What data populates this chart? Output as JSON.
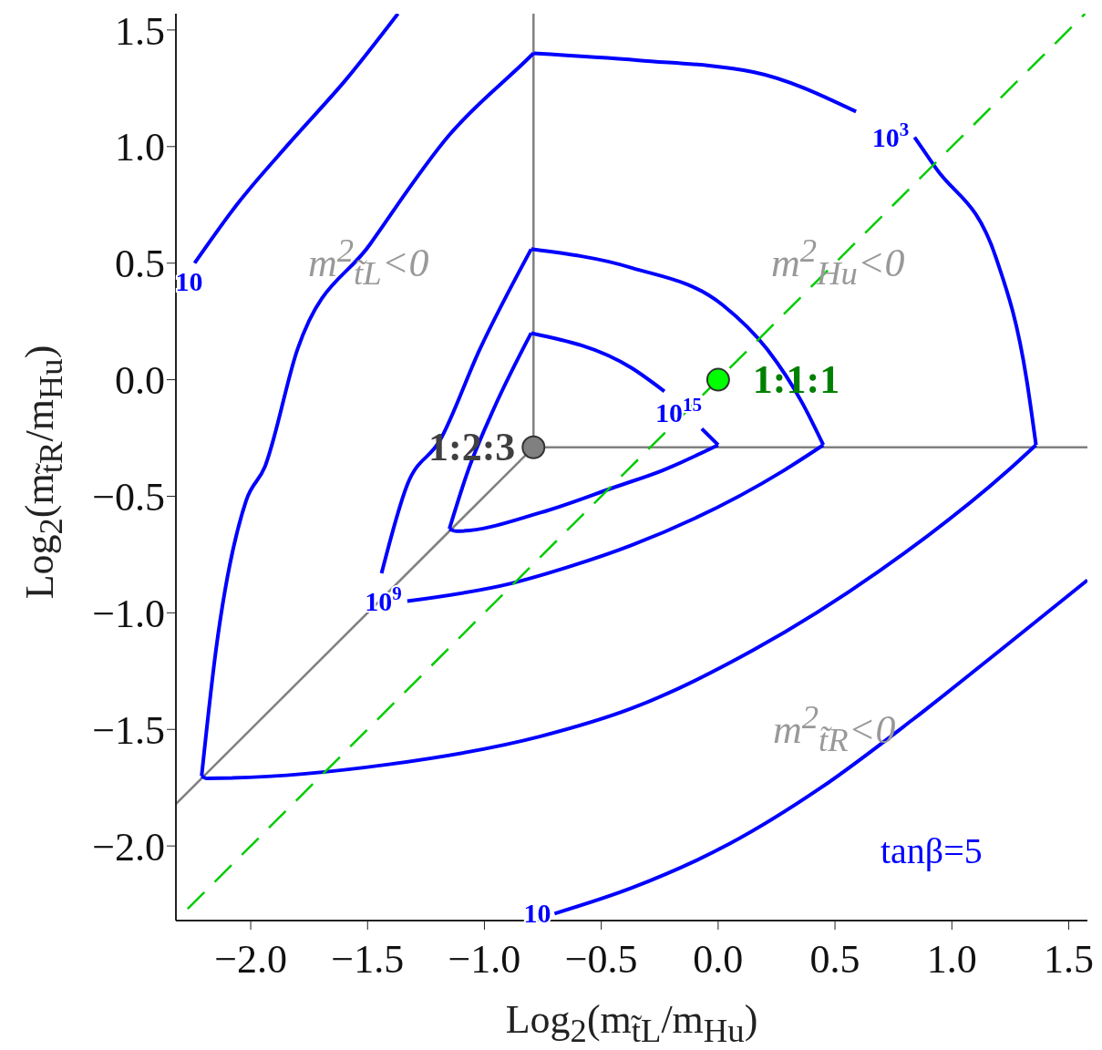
{
  "chart_data": {
    "type": "line",
    "xlabel": "Log$_{2}$(m$_{t̃L}$/m$_{Hu}$)",
    "ylabel": "Log$_{2}$(m$_{t̃R}$/m$_{Hu}$)",
    "xlim": [
      -2.32,
      1.58
    ],
    "ylim": [
      -2.32,
      1.57
    ],
    "xticks": [
      {
        "value": -2,
        "label": "−2.0"
      },
      {
        "value": -1.5,
        "label": "−1.5"
      },
      {
        "value": -1,
        "label": "−1.0"
      },
      {
        "value": -0.5,
        "label": "−0.5"
      },
      {
        "value": 0,
        "label": "0.0"
      },
      {
        "value": 0.5,
        "label": "0.5"
      },
      {
        "value": 1,
        "label": "1.0"
      },
      {
        "value": 1.5,
        "label": "1.5"
      }
    ],
    "yticks": [
      {
        "value": -2,
        "label": "−2.0"
      },
      {
        "value": -1.5,
        "label": "−1.5"
      },
      {
        "value": -1,
        "label": "−1.0"
      },
      {
        "value": -0.5,
        "label": "−0.5"
      },
      {
        "value": 0,
        "label": "0.0"
      },
      {
        "value": 0.5,
        "label": "0.5"
      },
      {
        "value": 1,
        "label": "1.0"
      },
      {
        "value": 1.5,
        "label": "1.5"
      }
    ],
    "grid": false,
    "marker": "none",
    "series": [
      {
        "color": "#808080",
        "x": [
          -0.79,
          -0.79
        ],
        "values": [
          -0.29,
          1.57
        ]
      },
      {
        "color": "#808080",
        "x": [
          -0.79,
          1.58
        ],
        "values": [
          -0.29,
          -0.29
        ]
      },
      {
        "color": "#808080",
        "x": [
          -2.32,
          -0.79
        ],
        "values": [
          -1.82,
          -0.29
        ]
      },
      {
        "color": "#0000ff",
        "x": [
          -2.24,
          -2.06,
          -1.83,
          -1.59,
          -1.37
        ],
        "values": [
          0.5,
          0.75,
          1.02,
          1.29,
          1.57
        ]
      },
      {
        "color": "#0000ff",
        "x": [
          -0.7,
          -0.37,
          0.05,
          0.44,
          0.83,
          1.22,
          1.58
        ],
        "values": [
          -2.29,
          -2.18,
          -1.99,
          -1.75,
          -1.46,
          -1.15,
          -0.86
        ]
      },
      {
        "color": "#0000ff",
        "x": [
          -2.21,
          -2.15,
          -2.02,
          -1.94,
          -1.8,
          -1.49,
          -1.15,
          -0.8,
          -0.79
        ],
        "values": [
          -1.7,
          -1.17,
          -0.52,
          -0.375,
          0.13,
          0.58,
          1.05,
          1.39,
          1.4
        ]
      },
      {
        "color": "#0000ff",
        "x": [
          -0.79,
          -0.34,
          0.15,
          0.59,
          0.71,
          0.84,
          0.93,
          1.19,
          1.32,
          1.36
        ],
        "values": [
          1.4,
          1.37,
          1.32,
          1.15,
          null,
          1.04,
          0.91,
          0.52,
          0.0,
          -0.28
        ]
      },
      {
        "color": "#0000ff",
        "x": [
          -2.21,
          -2.19,
          -1.41,
          -0.76,
          -0.37,
          0.15,
          0.69,
          1.24,
          1.36
        ],
        "values": [
          -1.7,
          -1.71,
          -1.65,
          -1.53,
          -1.41,
          -1.16,
          -0.82,
          -0.39,
          -0.28
        ]
      },
      {
        "color": "#0000ff",
        "x": [
          -1.44,
          -1.33,
          -1.19,
          -1.02,
          -0.8
        ],
        "values": [
          -0.83,
          -0.45,
          -0.26,
          0.13,
          0.56
        ]
      },
      {
        "color": "#0000ff",
        "x": [
          -0.8,
          -0.37,
          0.02,
          0.21,
          0.36,
          0.45
        ],
        "values": [
          0.56,
          0.48,
          0.32,
          0.13,
          -0.1,
          -0.28
        ]
      },
      {
        "color": "#0000ff",
        "x": [
          -1.33,
          -0.89,
          -0.63,
          -0.37,
          0.28,
          0.45
        ],
        "values": [
          -0.95,
          -0.875,
          -0.8,
          -0.71,
          -0.39,
          -0.28
        ]
      },
      {
        "color": "#0000ff",
        "x": [
          -1.15,
          -1.07,
          -0.96,
          -0.8
        ],
        "values": [
          -0.64,
          -0.39,
          -0.125,
          0.2
        ]
      },
      {
        "color": "#0000ff",
        "x": [
          -0.8,
          -0.37,
          -0.23,
          -0.15,
          -0.07,
          0.0
        ],
        "values": [
          0.2,
          0.05,
          -0.05,
          null,
          -0.21,
          -0.28
        ]
      },
      {
        "color": "#0000ff",
        "x": [
          -1.15,
          -1.12,
          -0.76,
          -0.44,
          -0.24,
          0.0
        ],
        "values": [
          -0.64,
          -0.65,
          -0.57,
          -0.46,
          -0.39,
          -0.28
        ]
      },
      {
        "color": "#00cc00",
        "line_style": "dashed",
        "x": [
          -2.27,
          1.57
        ],
        "values": [
          -2.27,
          1.57
        ]
      },
      {
        "type": "scatter",
        "name": "1:2:3",
        "color": "#808080",
        "marker": "circle",
        "x": [
          -0.79
        ],
        "values": [
          -0.29
        ]
      },
      {
        "type": "scatter",
        "name": "1:1:1",
        "color": "#00ff00",
        "marker": "circle",
        "x": [
          0
        ],
        "values": [
          0
        ]
      }
    ],
    "annotations": [
      {
        "text": "10",
        "x": -2.24,
        "y": 0.5
      },
      {
        "text": "10",
        "x": -0.7,
        "y": -2.29
      },
      {
        "text": "10$^{3}$",
        "x": 0.84,
        "y": 1.04
      },
      {
        "text": "10$^{9}$",
        "x": -1.33,
        "y": -0.95
      },
      {
        "text": "10$^{15}$",
        "x": -0.23,
        "y": -0.05
      },
      "m$^{2}$$_{t̃L}$<0",
      "m$^{2}$$_{Hu}$<0",
      "m$^{2}$$_{t̃R}$<0",
      "tanβ=5"
    ]
  }
}
